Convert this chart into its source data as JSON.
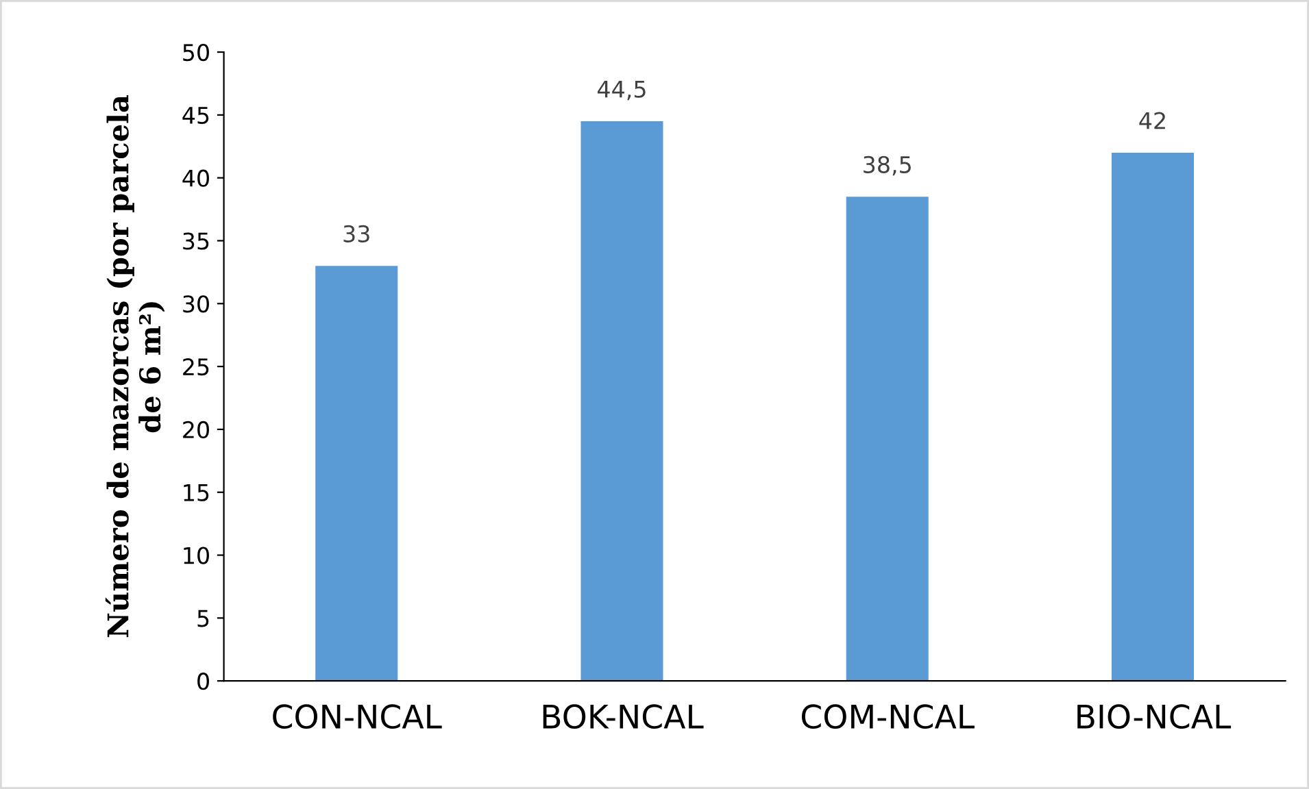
{
  "chart_data": {
    "type": "bar",
    "ylabel": "Número de mazorcas (por parcela\nde 6 m²)",
    "categories": [
      "CON-NCAL",
      "BOK-NCAL",
      "COM-NCAL",
      "BIO-NCAL"
    ],
    "values": [
      33,
      44.5,
      38.5,
      42
    ],
    "color": "#5b9bd5",
    "value_labels": [
      "33",
      "44,5",
      "38,5",
      "42"
    ],
    "ylim": [
      0,
      50
    ],
    "yticks": [
      0,
      5,
      10,
      15,
      20,
      25,
      30,
      35,
      40,
      45,
      50
    ],
    "grid": false,
    "legend": false
  }
}
